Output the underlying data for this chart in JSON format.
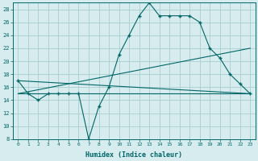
{
  "title": "",
  "xlabel": "Humidex (Indice chaleur)",
  "bg_color": "#d6ecee",
  "grid_color": "#aacdd0",
  "line_color": "#006666",
  "xlim": [
    -0.5,
    23.5
  ],
  "ylim": [
    8,
    29
  ],
  "yticks": [
    8,
    10,
    12,
    14,
    16,
    18,
    20,
    22,
    24,
    26,
    28
  ],
  "xticks": [
    0,
    1,
    2,
    3,
    4,
    5,
    6,
    7,
    8,
    9,
    10,
    11,
    12,
    13,
    14,
    15,
    16,
    17,
    18,
    19,
    20,
    21,
    22,
    23
  ],
  "curve_x": [
    0,
    1,
    2,
    3,
    4,
    5,
    6,
    7,
    8,
    9,
    10,
    11,
    12,
    13,
    14,
    15,
    16,
    17,
    18,
    19,
    20,
    21,
    22,
    23
  ],
  "curve_y": [
    17,
    15,
    14,
    15,
    15,
    15,
    15,
    8,
    13,
    16,
    21,
    24,
    27,
    29,
    27,
    27,
    27,
    27,
    26,
    22,
    20.5,
    18,
    16.5,
    15
  ],
  "line1_x": [
    0,
    23
  ],
  "line1_y": [
    17,
    15
  ],
  "line2_x": [
    0,
    23
  ],
  "line2_y": [
    15,
    22
  ],
  "line3_x": [
    0,
    23
  ],
  "line3_y": [
    15,
    15
  ]
}
